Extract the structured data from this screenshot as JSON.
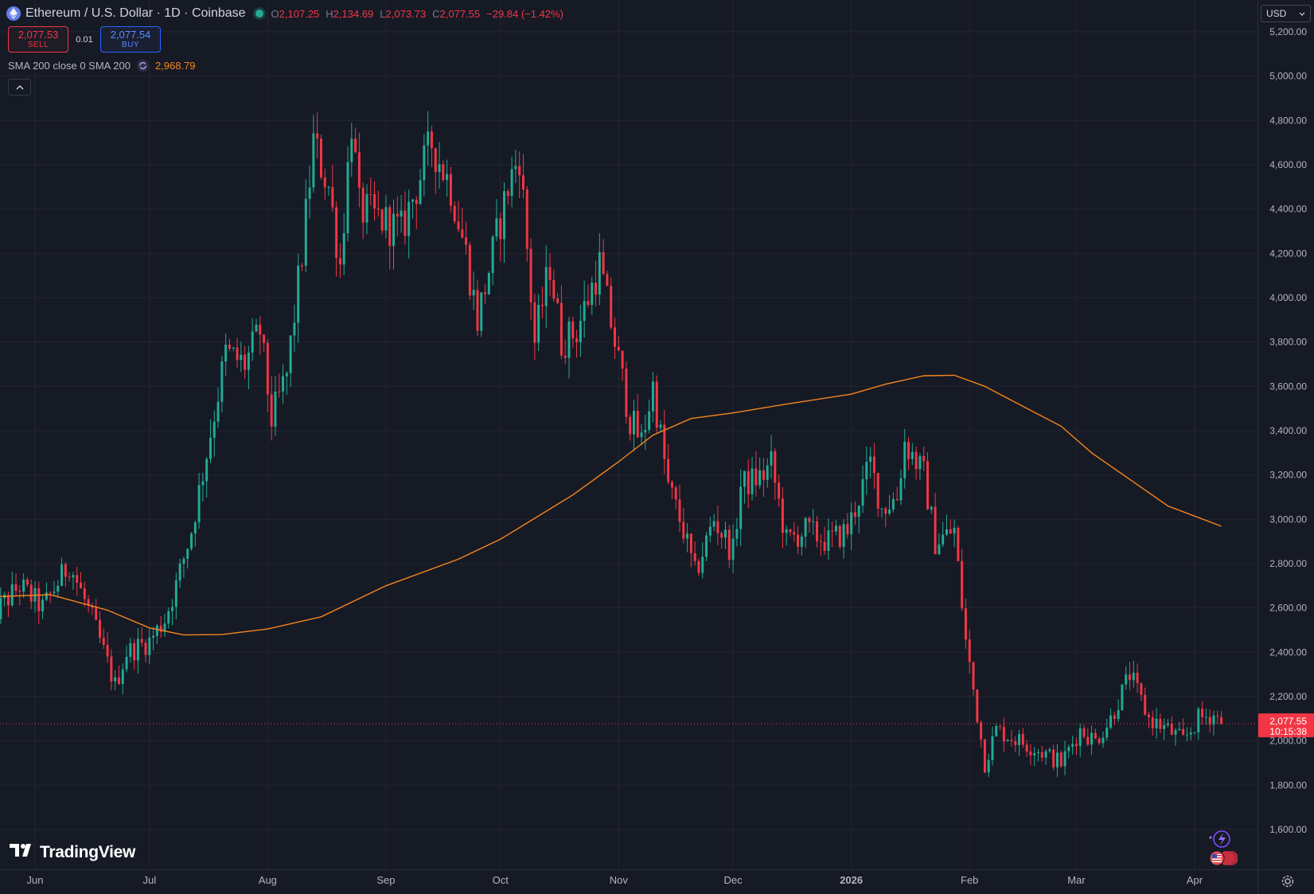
{
  "header": {
    "symbol_title": "Ethereum / U.S. Dollar · 1D · Coinbase",
    "open_label": "O",
    "open": "2,107.25",
    "high_label": "H",
    "high": "2,134.69",
    "low_label": "L",
    "low": "2,073.73",
    "close_label": "C",
    "close": "2,077.55",
    "change": "−29.84 (−1.42%)"
  },
  "trade": {
    "sell_price": "2,077.53",
    "sell_label": "SELL",
    "spread": "0.01",
    "buy_price": "2,077.54",
    "buy_label": "BUY"
  },
  "indicator": {
    "label": "SMA 200 close 0 SMA 200",
    "value": "2,968.79"
  },
  "currency": "USD",
  "price_tag": {
    "price": "2,077.55",
    "countdown": "10:15:38"
  },
  "logo": {
    "text": "TradingView"
  },
  "colors": {
    "background": "#161a25",
    "up": "#22ab94",
    "down": "#f23645",
    "sma": "#f7861e",
    "grid": "#232632"
  },
  "icons": [
    "ethereum-icon",
    "market-open-dot",
    "indicator-settings-icon",
    "collapse-chevron-icon",
    "dropdown-chevron-icon",
    "gear-icon",
    "lightning-icon",
    "flag-icon"
  ],
  "chart_data": {
    "type": "candlestick",
    "y_ticks": [
      "5,200.00",
      "5,000.00",
      "4,800.00",
      "4,600.00",
      "4,400.00",
      "4,200.00",
      "4,000.00",
      "3,800.00",
      "3,600.00",
      "3,400.00",
      "3,200.00",
      "3,000.00",
      "2,800.00",
      "2,600.00",
      "2,400.00",
      "2,200.00",
      "2,000.00",
      "1,800.00",
      "1,600.00"
    ],
    "y_tick_values": [
      5200,
      5000,
      4800,
      4600,
      4400,
      4200,
      4000,
      3800,
      3600,
      3400,
      3200,
      3000,
      2800,
      2600,
      2400,
      2200,
      2000,
      1800,
      1600
    ],
    "ylim": [
      1400,
      5200
    ],
    "x_ticks": [
      "Jun",
      "Jul",
      "Aug",
      "Sep",
      "Oct",
      "Nov",
      "Dec",
      "2026",
      "Feb",
      "Mar",
      "Apr"
    ],
    "x_tick_dates": [
      "2025-06-01",
      "2025-07-01",
      "2025-08-01",
      "2025-09-01",
      "2025-10-01",
      "2025-11-01",
      "2025-12-01",
      "2026-01-01",
      "2026-02-01",
      "2026-03-01",
      "2026-04-01"
    ],
    "current_price": 2077.55,
    "price_anchors": [
      [
        "2025-05-20",
        2550
      ],
      [
        "2025-05-28",
        2700
      ],
      [
        "2025-06-03",
        2600
      ],
      [
        "2025-06-10",
        2800
      ],
      [
        "2025-06-16",
        2550
      ],
      [
        "2025-06-22",
        2250
      ],
      [
        "2025-06-25",
        2400
      ],
      [
        "2025-07-01",
        2450
      ],
      [
        "2025-07-05",
        2550
      ],
      [
        "2025-07-08",
        2700
      ],
      [
        "2025-07-12",
        2950
      ],
      [
        "2025-07-16",
        3300
      ],
      [
        "2025-07-21",
        3750
      ],
      [
        "2025-07-26",
        3700
      ],
      [
        "2025-07-30",
        3850
      ],
      [
        "2025-08-02",
        3450
      ],
      [
        "2025-08-06",
        3650
      ],
      [
        "2025-08-10",
        4200
      ],
      [
        "2025-08-13",
        4700
      ],
      [
        "2025-08-17",
        4500
      ],
      [
        "2025-08-20",
        4150
      ],
      [
        "2025-08-23",
        4800
      ],
      [
        "2025-08-25",
        4400
      ],
      [
        "2025-08-31",
        4350
      ],
      [
        "2025-09-05",
        4300
      ],
      [
        "2025-09-13",
        4700
      ],
      [
        "2025-09-18",
        4500
      ],
      [
        "2025-09-22",
        4200
      ],
      [
        "2025-09-25",
        3900
      ],
      [
        "2025-09-29",
        4200
      ],
      [
        "2025-10-03",
        4500
      ],
      [
        "2025-10-06",
        4650
      ],
      [
        "2025-10-10",
        3800
      ],
      [
        "2025-10-14",
        4150
      ],
      [
        "2025-10-17",
        3800
      ],
      [
        "2025-10-21",
        3850
      ],
      [
        "2025-10-27",
        4150
      ],
      [
        "2025-10-31",
        3800
      ],
      [
        "2025-11-04",
        3450
      ],
      [
        "2025-11-07",
        3350
      ],
      [
        "2025-11-10",
        3600
      ],
      [
        "2025-11-14",
        3150
      ],
      [
        "2025-11-18",
        2950
      ],
      [
        "2025-11-21",
        2750
      ],
      [
        "2025-11-26",
        3000
      ],
      [
        "2025-12-01",
        2850
      ],
      [
        "2025-12-03",
        3150
      ],
      [
        "2025-12-09",
        3200
      ],
      [
        "2025-12-11",
        3250
      ],
      [
        "2025-12-15",
        2900
      ],
      [
        "2025-12-20",
        2950
      ],
      [
        "2025-12-26",
        2900
      ],
      [
        "2025-12-31",
        2950
      ],
      [
        "2026-01-06",
        3250
      ],
      [
        "2026-01-09",
        3050
      ],
      [
        "2026-01-13",
        3100
      ],
      [
        "2026-01-15",
        3350
      ],
      [
        "2026-01-20",
        3200
      ],
      [
        "2026-01-23",
        2900
      ],
      [
        "2026-01-28",
        2950
      ],
      [
        "2026-01-31",
        2450
      ],
      [
        "2026-02-05",
        1900
      ],
      [
        "2026-02-08",
        2050
      ],
      [
        "2026-02-14",
        2000
      ],
      [
        "2026-02-20",
        1950
      ],
      [
        "2026-02-25",
        1900
      ],
      [
        "2026-03-02",
        2050
      ],
      [
        "2026-03-06",
        2000
      ],
      [
        "2026-03-10",
        2100
      ],
      [
        "2026-03-15",
        2300
      ],
      [
        "2026-03-20",
        2100
      ],
      [
        "2026-03-25",
        2050
      ],
      [
        "2026-03-29",
        2000
      ],
      [
        "2026-04-02",
        2100
      ],
      [
        "2026-04-06",
        2120
      ],
      [
        "2026-04-08",
        2077.55
      ]
    ],
    "sma200": {
      "name": "SMA 200",
      "points": [
        [
          "2025-05-20",
          2650
        ],
        [
          "2025-06-05",
          2660
        ],
        [
          "2025-06-20",
          2590
        ],
        [
          "2025-07-01",
          2510
        ],
        [
          "2025-07-10",
          2478
        ],
        [
          "2025-07-20",
          2480
        ],
        [
          "2025-08-01",
          2505
        ],
        [
          "2025-08-15",
          2560
        ],
        [
          "2025-09-01",
          2700
        ],
        [
          "2025-09-20",
          2820
        ],
        [
          "2025-10-01",
          2910
        ],
        [
          "2025-10-20",
          3110
        ],
        [
          "2025-11-01",
          3260
        ],
        [
          "2025-11-10",
          3380
        ],
        [
          "2025-11-20",
          3455
        ],
        [
          "2025-12-01",
          3480
        ],
        [
          "2025-12-15",
          3520
        ],
        [
          "2026-01-01",
          3565
        ],
        [
          "2026-01-10",
          3610
        ],
        [
          "2026-01-20",
          3648
        ],
        [
          "2026-01-28",
          3650
        ],
        [
          "2026-02-05",
          3600
        ],
        [
          "2026-02-15",
          3510
        ],
        [
          "2026-02-25",
          3420
        ],
        [
          "2026-03-05",
          3300
        ],
        [
          "2026-03-15",
          3180
        ],
        [
          "2026-03-25",
          3060
        ],
        [
          "2026-04-08",
          2968.79
        ]
      ]
    }
  }
}
